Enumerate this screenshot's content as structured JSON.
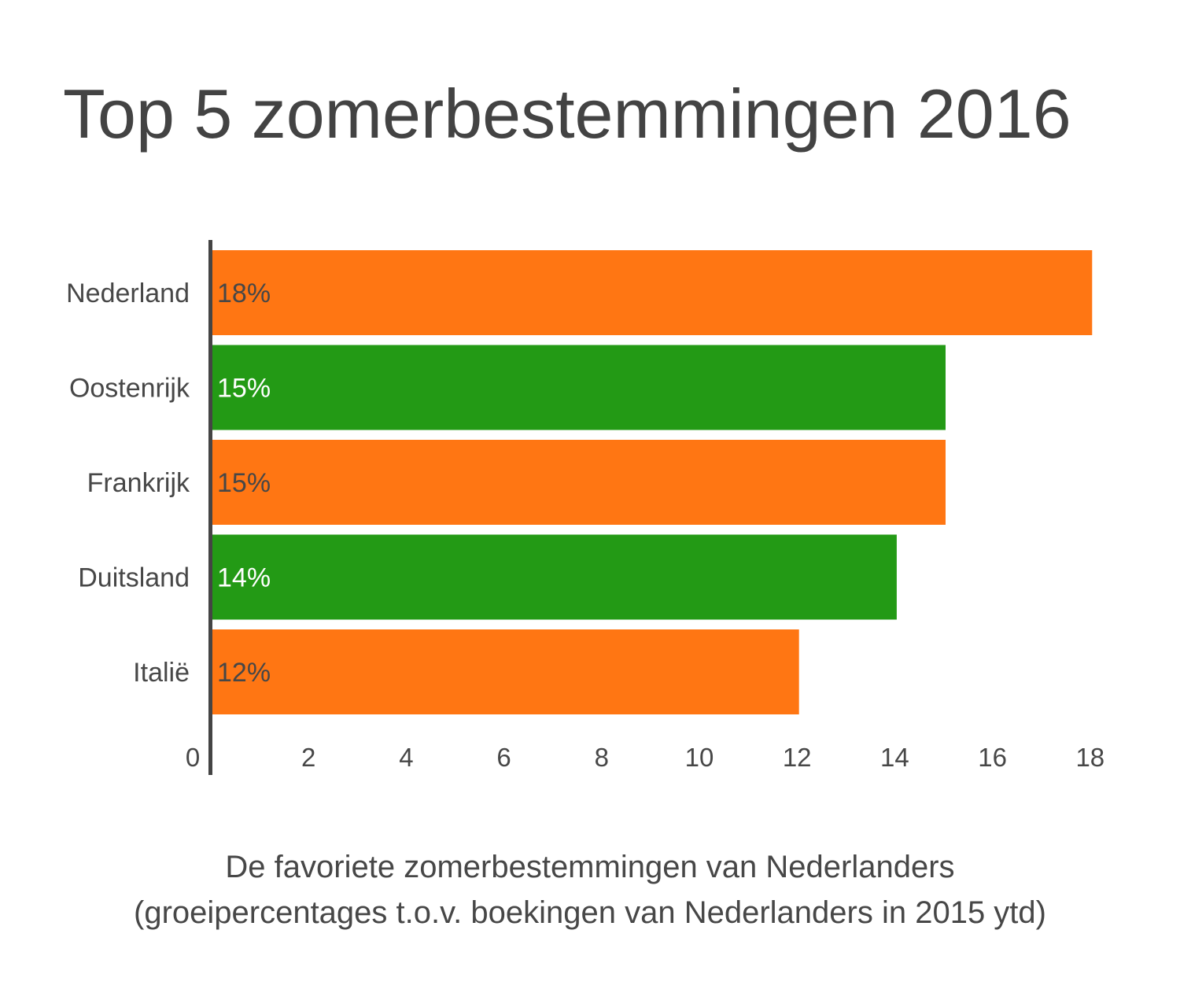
{
  "chart_data": {
    "type": "bar",
    "orientation": "horizontal",
    "title": "Top 5 zomerbestemmingen 2016",
    "caption_line1": "De favoriete zomerbestemmingen van Nederlanders",
    "caption_line2": "(groeipercentages t.o.v. boekingen van Nederlanders in 2015 ytd)",
    "categories": [
      "Nederland",
      "Oostenrijk",
      "Frankrijk",
      "Duitsland",
      "Italië"
    ],
    "values": [
      18,
      15,
      15,
      14,
      12
    ],
    "data_labels": [
      "18%",
      "15%",
      "15%",
      "14%",
      "12%"
    ],
    "bar_colors": [
      "#ff7613",
      "#239a15",
      "#ff7613",
      "#239a15",
      "#ff7613"
    ],
    "label_colors": [
      "#474747",
      "#ffffff",
      "#474747",
      "#ffffff",
      "#474747"
    ],
    "xticks": [
      0,
      2,
      4,
      6,
      8,
      10,
      12,
      14,
      16,
      18
    ],
    "xlim": [
      0,
      18
    ],
    "xlabel": "",
    "ylabel": "",
    "grid": false,
    "legend": "none"
  }
}
